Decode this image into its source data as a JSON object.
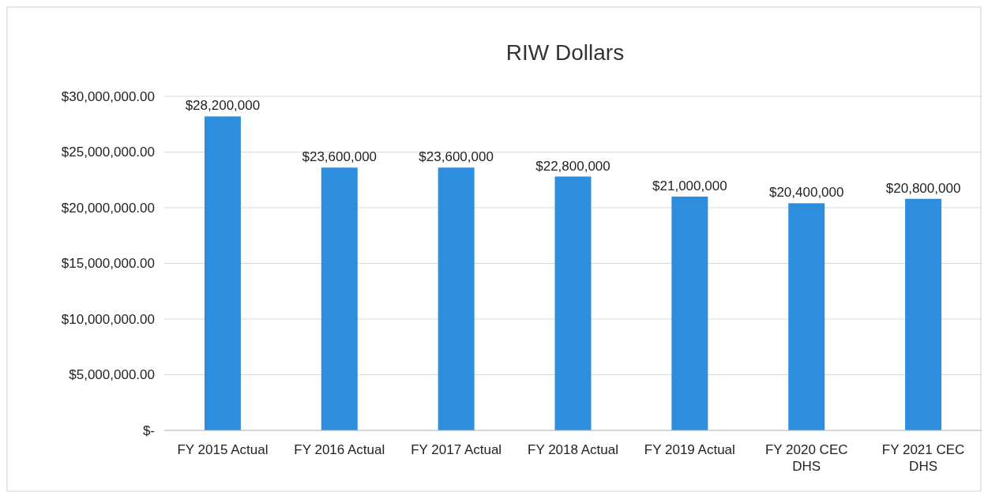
{
  "chart_data": {
    "type": "bar",
    "title": "RIW Dollars",
    "categories": [
      "FY 2015 Actual",
      "FY 2016 Actual",
      "FY 2017 Actual",
      "FY 2018 Actual",
      "FY 2019 Actual",
      "FY 2020 CEC DHS",
      "FY 2021 CEC DHS"
    ],
    "values": [
      28200000,
      23600000,
      23600000,
      22800000,
      21000000,
      20400000,
      20800000
    ],
    "value_labels": [
      "$28,200,000",
      "$23,600,000",
      "$23,600,000",
      "$22,800,000",
      "$21,000,000",
      "$20,400,000",
      "$20,800,000"
    ],
    "color": "#2e8ede",
    "ylim": [
      0,
      30000000
    ],
    "yticks": [
      {
        "value": 0,
        "label": "$-"
      },
      {
        "value": 5000000,
        "label": "$5,000,000.00"
      },
      {
        "value": 10000000,
        "label": "$10,000,000.00"
      },
      {
        "value": 15000000,
        "label": "$15,000,000.00"
      },
      {
        "value": 20000000,
        "label": "$20,000,000.00"
      },
      {
        "value": 25000000,
        "label": "$25,000,000.00"
      },
      {
        "value": 30000000,
        "label": "$30,000,000.00"
      }
    ],
    "grid": "y"
  }
}
